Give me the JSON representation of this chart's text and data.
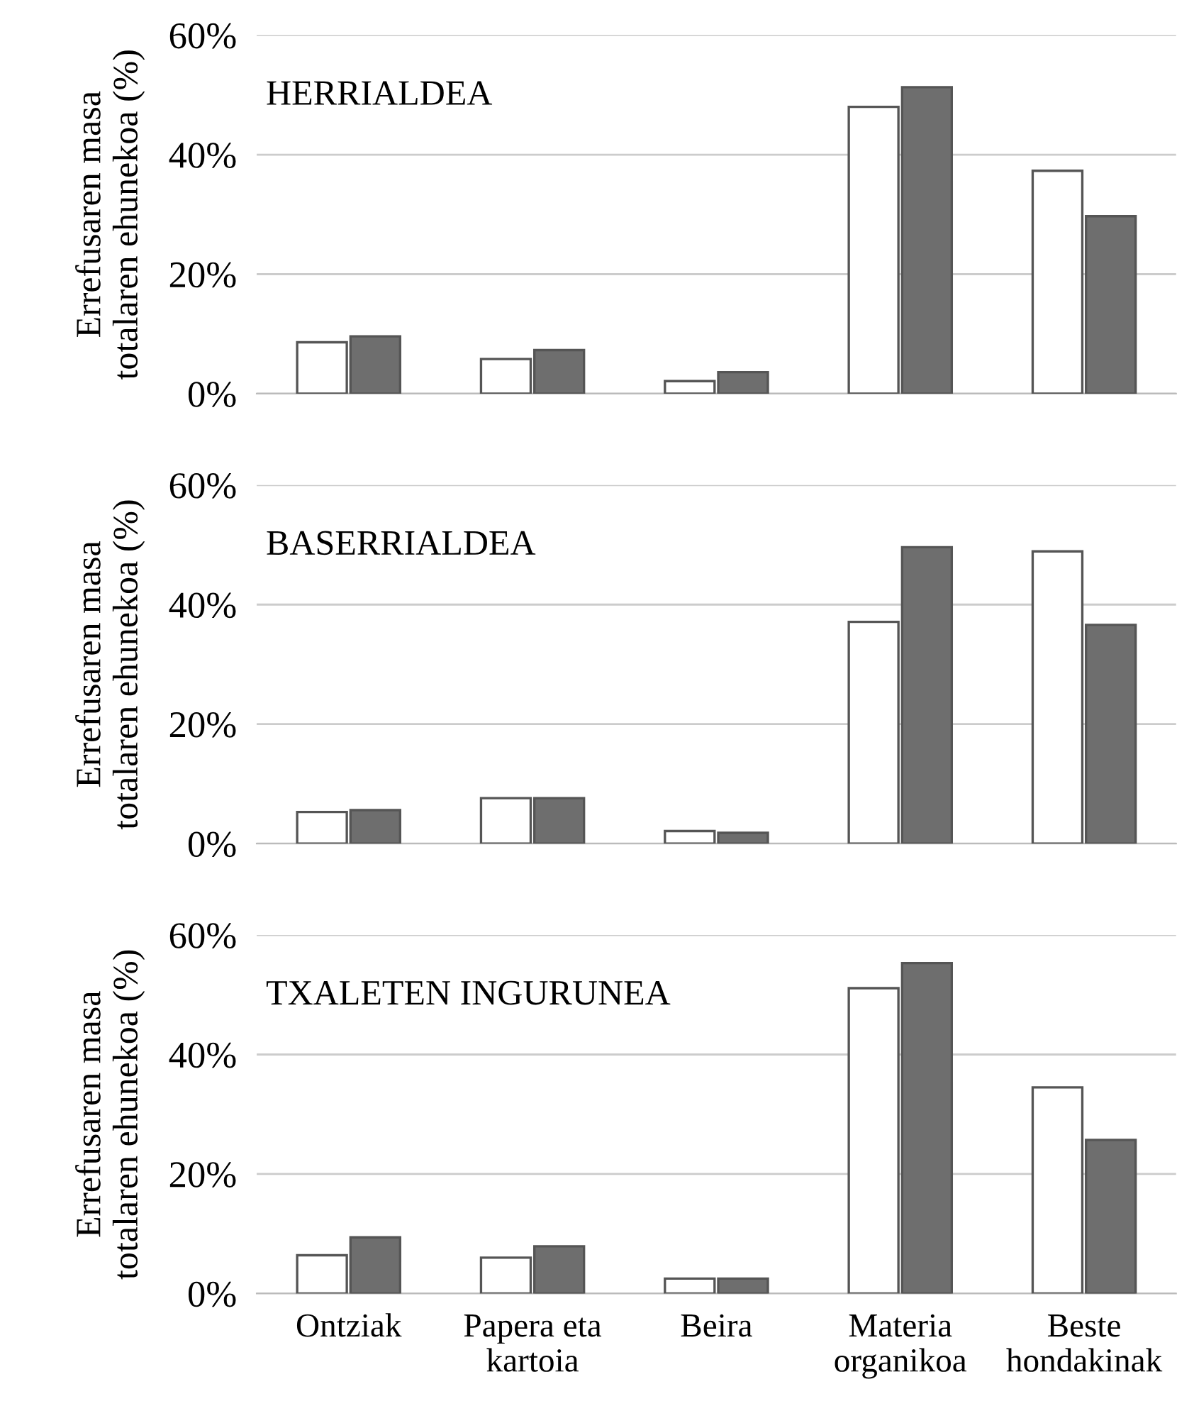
{
  "chart_data": [
    {
      "type": "bar",
      "title": "HERRIALDEA",
      "ylabel": "Errefusaren masa\ntotalaren ehunekoa (%)",
      "categories": [
        null,
        null,
        null,
        null,
        null
      ],
      "series": [
        {
          "color": "#ffffff",
          "values": [
            8.6,
            5.8,
            2.1,
            48,
            37.3
          ]
        },
        {
          "color": "#6e6e6e",
          "values": [
            9.6,
            7.3,
            3.6,
            51.3,
            29.7
          ]
        }
      ],
      "ylim": [
        0,
        60
      ],
      "yticks": [
        {
          "value": 0,
          "label": "0%"
        },
        {
          "value": 20,
          "label": "20%"
        },
        {
          "value": 40,
          "label": "40%"
        },
        {
          "value": 60,
          "label": "60%"
        }
      ],
      "grid": "y",
      "tick_labels": "y"
    },
    {
      "type": "bar",
      "title": "BASERRIALDEA",
      "ylabel": "Errefusaren masa\ntotalaren ehunekoa (%)",
      "categories": [
        null,
        null,
        null,
        null,
        null
      ],
      "series": [
        {
          "color": "#ffffff",
          "values": [
            5.3,
            7.6,
            2.1,
            37.1,
            48.9
          ]
        },
        {
          "color": "#6e6e6e",
          "values": [
            5.6,
            7.6,
            1.8,
            49.6,
            36.6
          ]
        }
      ],
      "ylim": [
        0,
        60
      ],
      "yticks": [
        {
          "value": 0,
          "label": "0%"
        },
        {
          "value": 20,
          "label": "20%"
        },
        {
          "value": 40,
          "label": "40%"
        },
        {
          "value": 60,
          "label": "60%"
        }
      ],
      "grid": "y",
      "tick_labels": "y"
    },
    {
      "type": "bar",
      "title": "TXALETEN INGURUNEA",
      "ylabel": "Errefusaren masa\ntotalaren ehunekoa (%)",
      "categories": [
        "Ontziak",
        "Papera eta\nkartoia",
        "Beira",
        "Materia\norganikoa",
        "Beste\nhondakinak"
      ],
      "series": [
        {
          "color": "#ffffff",
          "values": [
            6.4,
            6.0,
            2.5,
            51.1,
            34.5
          ]
        },
        {
          "color": "#6e6e6e",
          "values": [
            9.4,
            7.9,
            2.5,
            55.3,
            25.7
          ]
        }
      ],
      "ylim": [
        0,
        60
      ],
      "yticks": [
        {
          "value": 0,
          "label": "0%"
        },
        {
          "value": 20,
          "label": "20%"
        },
        {
          "value": 40,
          "label": "40%"
        },
        {
          "value": 60,
          "label": "60%"
        }
      ],
      "grid": "y"
    }
  ]
}
